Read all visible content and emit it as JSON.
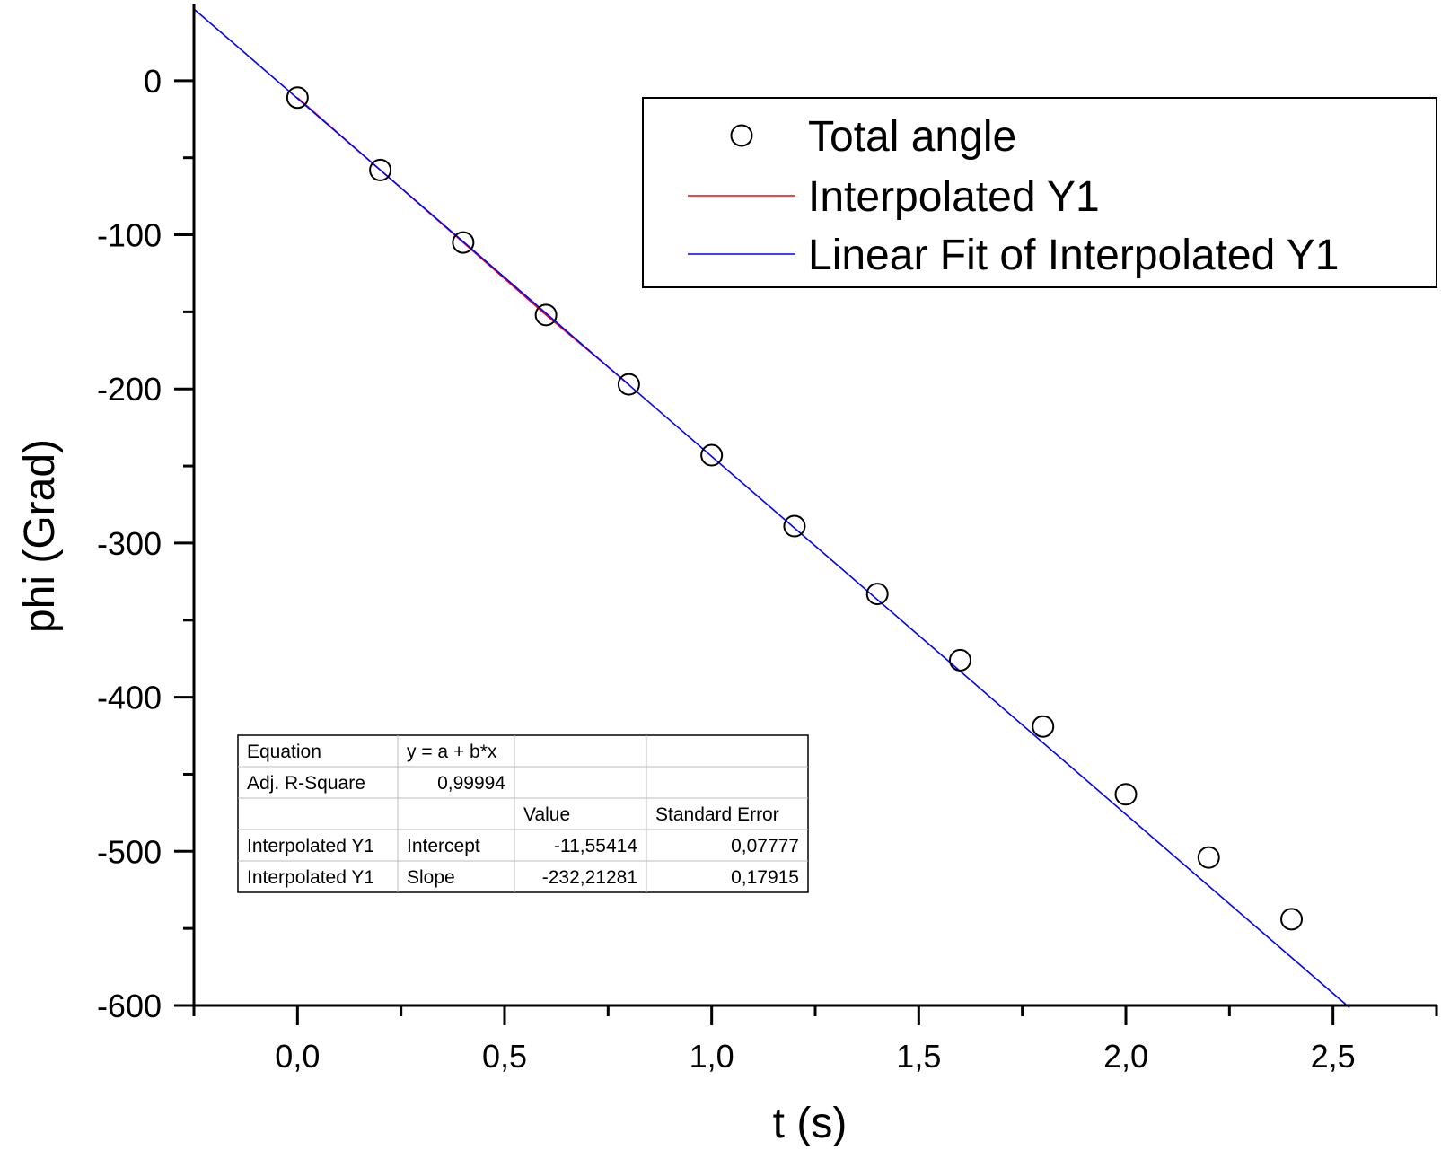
{
  "chart_data": {
    "type": "scatter",
    "xlabel": "t (s)",
    "ylabel": "phi (Grad)",
    "xlim": [
      -0.25,
      2.75
    ],
    "ylim": [
      -600,
      50
    ],
    "xticks": [
      {
        "value": 0.0,
        "label": "0,0"
      },
      {
        "value": 0.5,
        "label": "0,5"
      },
      {
        "value": 1.0,
        "label": "1,0"
      },
      {
        "value": 1.5,
        "label": "1,5"
      },
      {
        "value": 2.0,
        "label": "2,0"
      },
      {
        "value": 2.5,
        "label": "2,5"
      }
    ],
    "xminor": [
      -0.25,
      0.25,
      0.75,
      1.25,
      1.75,
      2.25,
      2.75
    ],
    "yticks": [
      {
        "value": 0,
        "label": "0"
      },
      {
        "value": -100,
        "label": "-100"
      },
      {
        "value": -200,
        "label": "-200"
      },
      {
        "value": -300,
        "label": "-300"
      },
      {
        "value": -400,
        "label": "-400"
      },
      {
        "value": -500,
        "label": "-500"
      },
      {
        "value": -600,
        "label": "-600"
      }
    ],
    "yminor": [
      -50,
      -150,
      -250,
      -350,
      -450,
      -550
    ],
    "grid": false,
    "legend_position": "top-right",
    "series": [
      {
        "name": "Total angle",
        "kind": "scatter",
        "marker": "open-circle",
        "color": "#000000",
        "x": [
          0.0,
          0.2,
          0.4,
          0.6,
          0.8,
          1.0,
          1.2,
          1.4,
          1.6,
          1.8,
          2.0,
          2.2,
          2.4
        ],
        "y": [
          -11,
          -58,
          -105,
          -152,
          -197,
          -243,
          -289,
          -333,
          -376,
          -419,
          -463,
          -504,
          -544
        ]
      },
      {
        "name": "Interpolated Y1",
        "kind": "line",
        "color": "#ff0000",
        "x": [
          0.0,
          0.2,
          0.4,
          0.6,
          0.8
        ],
        "y": [
          -11,
          -58,
          -105,
          -152,
          -197
        ]
      },
      {
        "name": "Linear Fit of Interpolated Y1",
        "kind": "line",
        "color": "#0000ff",
        "x": [
          -0.25,
          2.54
        ],
        "y": [
          46.5,
          -601.4
        ]
      }
    ],
    "fit_table": {
      "rows": [
        [
          "Equation",
          "y = a + b*x",
          "",
          ""
        ],
        [
          "Adj. R-Square",
          "0,99994",
          "",
          ""
        ],
        [
          "",
          "",
          "Value",
          "Standard Error"
        ],
        [
          "Interpolated Y1",
          "Intercept",
          "-11,55414",
          "0,07777"
        ],
        [
          "Interpolated Y1",
          "Slope",
          "-232,21281",
          "0,17915"
        ]
      ],
      "align": [
        [
          "left",
          "left",
          "left",
          "left"
        ],
        [
          "left",
          "right",
          "left",
          "left"
        ],
        [
          "left",
          "left",
          "left",
          "left"
        ],
        [
          "left",
          "left",
          "right",
          "right"
        ],
        [
          "left",
          "left",
          "right",
          "right"
        ]
      ]
    }
  }
}
